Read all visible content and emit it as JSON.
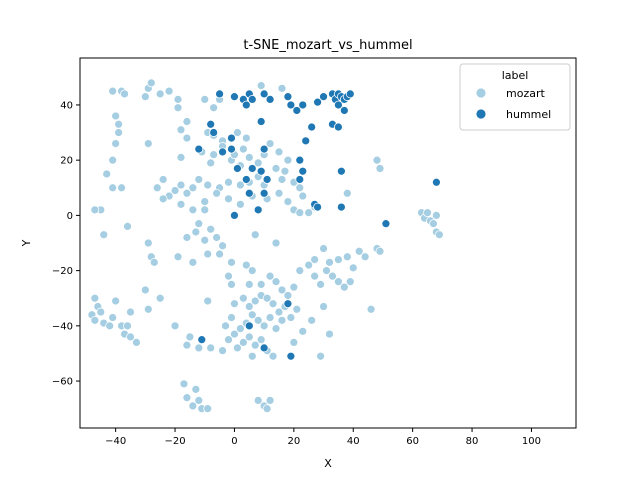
{
  "chart_data": {
    "type": "scatter",
    "title": "t-SNE_mozart_vs_hummel",
    "xlabel": "X",
    "ylabel": "Y",
    "xlim": [
      -52,
      115
    ],
    "ylim": [
      -77,
      57
    ],
    "xticks": [
      -40,
      -20,
      0,
      20,
      40,
      60,
      80,
      100
    ],
    "yticks": [
      -60,
      -40,
      -20,
      0,
      20,
      40
    ],
    "grid": false,
    "legend": {
      "title": "label",
      "placement": "top-right"
    },
    "series": [
      {
        "name": "mozart",
        "color": "#a6cee3",
        "points": [
          [
            -41,
            45
          ],
          [
            -38,
            45
          ],
          [
            -37,
            44
          ],
          [
            -40,
            36
          ],
          [
            -39,
            33
          ],
          [
            -39,
            30
          ],
          [
            -41,
            20
          ],
          [
            -43,
            15
          ],
          [
            -41,
            10
          ],
          [
            -38,
            10
          ],
          [
            -40,
            26
          ],
          [
            -29,
            46
          ],
          [
            -28,
            48
          ],
          [
            -30,
            43
          ],
          [
            -25,
            44
          ],
          [
            -22,
            45
          ],
          [
            -19,
            42
          ],
          [
            -19,
            39
          ],
          [
            -29,
            26
          ],
          [
            -18,
            31
          ],
          [
            -16,
            28
          ],
          [
            -18,
            21
          ],
          [
            -16,
            34
          ],
          [
            -10,
            42
          ],
          [
            -7,
            39
          ],
          [
            -5,
            42
          ],
          [
            -9,
            30
          ],
          [
            -7,
            29
          ],
          [
            -4,
            27
          ],
          [
            -11,
            23
          ],
          [
            -7,
            22
          ],
          [
            -8,
            19
          ],
          [
            -4,
            25
          ],
          [
            -1,
            24
          ],
          [
            1,
            30
          ],
          [
            4,
            28
          ],
          [
            3,
            24
          ],
          [
            -1,
            20
          ],
          [
            2,
            18
          ],
          [
            0,
            22
          ],
          [
            5,
            21
          ],
          [
            8,
            19
          ],
          [
            10,
            22
          ],
          [
            12,
            26
          ],
          [
            15,
            23
          ],
          [
            18,
            20
          ],
          [
            14,
            17
          ],
          [
            16,
            13
          ],
          [
            10,
            11
          ],
          [
            8,
            14
          ],
          [
            5,
            12
          ],
          [
            2,
            11
          ],
          [
            -2,
            12
          ],
          [
            -5,
            10
          ],
          [
            -9,
            11
          ],
          [
            -12,
            13
          ],
          [
            -14,
            10
          ],
          [
            -16,
            8
          ],
          [
            -18,
            11
          ],
          [
            -20,
            9
          ],
          [
            -22,
            7
          ],
          [
            -24,
            6
          ],
          [
            -26,
            10
          ],
          [
            -24,
            13
          ],
          [
            -18,
            4
          ],
          [
            -14,
            2
          ],
          [
            -10,
            5
          ],
          [
            -6,
            8
          ],
          [
            -2,
            6
          ],
          [
            2,
            4
          ],
          [
            6,
            7
          ],
          [
            11,
            6
          ],
          [
            15,
            8
          ],
          [
            18,
            5
          ],
          [
            20,
            2
          ],
          [
            22,
            1
          ],
          [
            25,
            1
          ],
          [
            27,
            3
          ],
          [
            20,
            12
          ],
          [
            17,
            16
          ],
          [
            22,
            10
          ],
          [
            23,
            7
          ],
          [
            9,
            47
          ],
          [
            16,
            46
          ],
          [
            -10,
            2
          ],
          [
            -12,
            -3
          ],
          [
            -8,
            -5
          ],
          [
            -6,
            -8
          ],
          [
            -4,
            -11
          ],
          [
            -10,
            -9
          ],
          [
            -13,
            -6
          ],
          [
            -16,
            -8
          ],
          [
            -9,
            -14
          ],
          [
            -14,
            -17
          ],
          [
            -19,
            -15
          ],
          [
            -5,
            -14
          ],
          [
            -1,
            -17
          ],
          [
            -2,
            -22
          ],
          [
            -29,
            -10
          ],
          [
            -28,
            -15
          ],
          [
            -27,
            -17
          ],
          [
            -36,
            -4
          ],
          [
            -45,
            2
          ],
          [
            -47,
            2
          ],
          [
            -44,
            -7
          ],
          [
            7,
            -7
          ],
          [
            14,
            -10
          ],
          [
            4,
            -18
          ],
          [
            6,
            -20
          ],
          [
            5,
            -25
          ],
          [
            9,
            -25
          ],
          [
            12,
            -22
          ],
          [
            14,
            -24
          ],
          [
            16,
            -27
          ],
          [
            18,
            -29
          ],
          [
            20,
            -26
          ],
          [
            22,
            -20
          ],
          [
            25,
            -18
          ],
          [
            27,
            -22
          ],
          [
            29,
            -25
          ],
          [
            31,
            -20
          ],
          [
            33,
            -22
          ],
          [
            35,
            -24
          ],
          [
            37,
            -26
          ],
          [
            39,
            -24
          ],
          [
            40,
            -19
          ],
          [
            42,
            -13
          ],
          [
            44,
            -15
          ],
          [
            48,
            -12
          ],
          [
            49,
            -13
          ],
          [
            38,
            -15
          ],
          [
            35,
            -16
          ],
          [
            32,
            -17
          ],
          [
            30,
            -12
          ],
          [
            27,
            -16
          ],
          [
            -47,
            -30
          ],
          [
            -46,
            -33
          ],
          [
            -48,
            -36
          ],
          [
            -47,
            -38
          ],
          [
            -45,
            -35
          ],
          [
            -44,
            -39
          ],
          [
            -42,
            -40
          ],
          [
            -41,
            -37
          ],
          [
            -40,
            -31
          ],
          [
            -38,
            -40
          ],
          [
            -36,
            -40
          ],
          [
            -37,
            -43
          ],
          [
            -35,
            -44
          ],
          [
            -33,
            -46
          ],
          [
            -35,
            -35
          ],
          [
            -29,
            -34
          ],
          [
            -20,
            -40
          ],
          [
            -15,
            -44
          ],
          [
            -16,
            -47
          ],
          [
            -12,
            -48
          ],
          [
            -9,
            -31
          ],
          [
            -1,
            -25
          ],
          [
            0,
            -32
          ],
          [
            3,
            -30
          ],
          [
            5,
            -33
          ],
          [
            7,
            -31
          ],
          [
            9,
            -29
          ],
          [
            11,
            -30
          ],
          [
            13,
            -32
          ],
          [
            15,
            -35
          ],
          [
            17,
            -33
          ],
          [
            19,
            -37
          ],
          [
            21,
            -34
          ],
          [
            16,
            -38
          ],
          [
            14,
            -41
          ],
          [
            12,
            -37
          ],
          [
            10,
            -40
          ],
          [
            8,
            -38
          ],
          [
            6,
            -36
          ],
          [
            4,
            -39
          ],
          [
            2,
            -41
          ],
          [
            0,
            -43
          ],
          [
            -2,
            -45
          ],
          [
            -3,
            -40
          ],
          [
            -1,
            -37
          ],
          [
            1,
            -48
          ],
          [
            3,
            -46
          ],
          [
            5,
            -44
          ],
          [
            7,
            -47
          ],
          [
            9,
            -45
          ],
          [
            11,
            -49
          ],
          [
            13,
            -51
          ],
          [
            6,
            -51
          ],
          [
            -4,
            -49
          ],
          [
            -8,
            -48
          ],
          [
            20,
            -46
          ],
          [
            23,
            -42
          ],
          [
            26,
            -38
          ],
          [
            30,
            -33
          ],
          [
            32,
            -43
          ],
          [
            29,
            -51
          ],
          [
            46,
            -34
          ],
          [
            -17,
            -61
          ],
          [
            -16,
            -66
          ],
          [
            -13,
            -63
          ],
          [
            -12,
            -67
          ],
          [
            -11,
            -70
          ],
          [
            -9,
            -70
          ],
          [
            -14,
            -69
          ],
          [
            8,
            -67
          ],
          [
            10,
            -69
          ],
          [
            11,
            -70
          ],
          [
            12,
            -67
          ],
          [
            63,
            1
          ],
          [
            64,
            -1
          ],
          [
            65,
            1
          ],
          [
            66,
            -2
          ],
          [
            67,
            -3
          ],
          [
            68,
            -6
          ],
          [
            69,
            -7
          ],
          [
            68,
            0
          ],
          [
            48,
            20
          ],
          [
            49,
            17
          ],
          [
            38,
            8
          ],
          [
            -30,
            -27
          ],
          [
            -25,
            -30
          ]
        ]
      },
      {
        "name": "hummel",
        "color": "#1f78b4",
        "points": [
          [
            -5,
            44
          ],
          [
            0,
            43
          ],
          [
            3,
            42
          ],
          [
            4,
            40
          ],
          [
            5,
            44
          ],
          [
            6,
            42
          ],
          [
            10,
            44
          ],
          [
            12,
            42
          ],
          [
            18,
            43
          ],
          [
            19,
            40
          ],
          [
            23,
            40
          ],
          [
            28,
            41
          ],
          [
            30,
            43
          ],
          [
            33,
            44
          ],
          [
            34,
            42
          ],
          [
            35,
            44
          ],
          [
            35,
            40
          ],
          [
            36,
            43
          ],
          [
            37,
            42
          ],
          [
            38,
            43
          ],
          [
            39,
            44
          ],
          [
            37,
            38
          ],
          [
            33,
            33
          ],
          [
            35,
            32
          ],
          [
            26,
            32
          ],
          [
            24,
            27
          ],
          [
            22,
            20
          ],
          [
            23,
            16
          ],
          [
            22,
            13
          ],
          [
            36,
            16
          ],
          [
            36,
            3
          ],
          [
            27,
            4
          ],
          [
            28,
            3
          ],
          [
            -8,
            33
          ],
          [
            -7,
            30
          ],
          [
            -12,
            24
          ],
          [
            -1,
            28
          ],
          [
            -1,
            24
          ],
          [
            -4,
            23
          ],
          [
            1,
            17
          ],
          [
            6,
            17
          ],
          [
            9,
            16
          ],
          [
            11,
            13
          ],
          [
            4,
            13
          ],
          [
            5,
            8
          ],
          [
            10,
            8
          ],
          [
            8,
            2
          ],
          [
            0,
            0
          ],
          [
            9,
            34
          ],
          [
            10,
            24
          ],
          [
            21,
            38
          ],
          [
            51,
            -3
          ],
          [
            68,
            12
          ],
          [
            18,
            -32
          ],
          [
            19,
            -51
          ],
          [
            10,
            -48
          ],
          [
            5,
            -40
          ],
          [
            -11,
            -45
          ]
        ]
      }
    ]
  }
}
